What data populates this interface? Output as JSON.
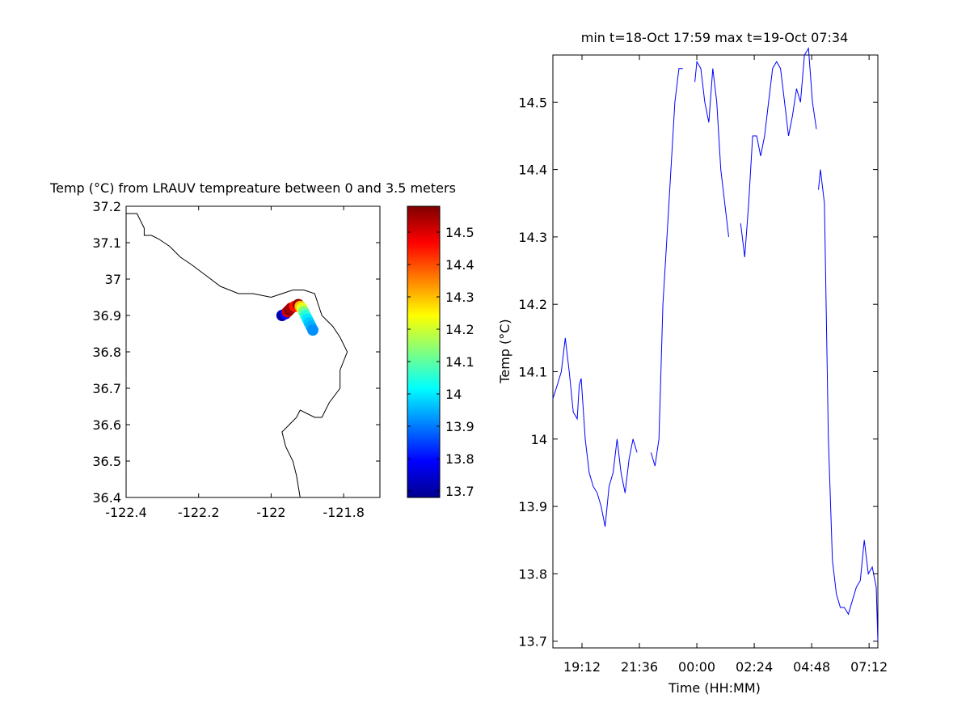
{
  "map_panel": {
    "title": "Temp (°C) from LRAUV tempreature between 0 and 3.5 meters",
    "xlim": [
      -122.4,
      -121.7
    ],
    "ylim": [
      36.4,
      37.2
    ],
    "xticks": [
      "-122.4",
      "-122.2",
      "-122",
      "-121.8"
    ],
    "xtick_values": [
      -122.4,
      -122.2,
      -122.0,
      -121.8
    ],
    "yticks": [
      "37.2",
      "37.1",
      "37",
      "36.9",
      "36.8",
      "36.7",
      "36.6",
      "36.5",
      "36.4"
    ],
    "ytick_values": [
      37.2,
      37.1,
      37.0,
      36.9,
      36.8,
      36.7,
      36.6,
      36.5,
      36.4
    ],
    "coastline": [
      [
        -122.4,
        37.18
      ],
      [
        -122.37,
        37.18
      ],
      [
        -122.36,
        37.16
      ],
      [
        -122.35,
        37.14
      ],
      [
        -122.35,
        37.12
      ],
      [
        -122.33,
        37.12
      ],
      [
        -122.31,
        37.11
      ],
      [
        -122.28,
        37.09
      ],
      [
        -122.25,
        37.06
      ],
      [
        -122.22,
        37.04
      ],
      [
        -122.18,
        37.01
      ],
      [
        -122.14,
        36.98
      ],
      [
        -122.09,
        36.96
      ],
      [
        -122.05,
        36.96
      ],
      [
        -122.0,
        36.95
      ],
      [
        -121.97,
        36.96
      ],
      [
        -121.94,
        36.97
      ],
      [
        -121.91,
        36.97
      ],
      [
        -121.88,
        36.96
      ],
      [
        -121.87,
        36.93
      ],
      [
        -121.86,
        36.9
      ],
      [
        -121.83,
        36.87
      ],
      [
        -121.81,
        36.84
      ],
      [
        -121.79,
        36.8
      ],
      [
        -121.81,
        36.75
      ],
      [
        -121.81,
        36.7
      ],
      [
        -121.84,
        36.66
      ],
      [
        -121.86,
        36.62
      ],
      [
        -121.88,
        36.62
      ],
      [
        -121.9,
        36.63
      ],
      [
        -121.92,
        36.64
      ],
      [
        -121.93,
        36.62
      ],
      [
        -121.95,
        36.6
      ],
      [
        -121.97,
        36.58
      ],
      [
        -121.96,
        36.54
      ],
      [
        -121.94,
        36.5
      ],
      [
        -121.93,
        36.46
      ],
      [
        -121.92,
        36.4
      ]
    ],
    "track": [
      {
        "lon": -121.97,
        "lat": 36.9,
        "temp": 13.72
      },
      {
        "lon": -121.96,
        "lat": 36.905,
        "temp": 13.8
      },
      {
        "lon": -121.955,
        "lat": 36.91,
        "temp": 14.5
      },
      {
        "lon": -121.95,
        "lat": 36.915,
        "temp": 14.57
      },
      {
        "lon": -121.945,
        "lat": 36.92,
        "temp": 14.55
      },
      {
        "lon": -121.935,
        "lat": 36.925,
        "temp": 14.45
      },
      {
        "lon": -121.925,
        "lat": 36.93,
        "temp": 14.56
      },
      {
        "lon": -121.92,
        "lat": 36.925,
        "temp": 14.3
      },
      {
        "lon": -121.915,
        "lat": 36.92,
        "temp": 14.22
      },
      {
        "lon": -121.91,
        "lat": 36.91,
        "temp": 14.12
      },
      {
        "lon": -121.905,
        "lat": 36.9,
        "temp": 14.05
      },
      {
        "lon": -121.9,
        "lat": 36.89,
        "temp": 14.0
      },
      {
        "lon": -121.895,
        "lat": 36.88,
        "temp": 13.97
      },
      {
        "lon": -121.89,
        "lat": 36.87,
        "temp": 13.95
      },
      {
        "lon": -121.885,
        "lat": 36.86,
        "temp": 13.92
      }
    ]
  },
  "colorbar": {
    "range": [
      13.68,
      14.58
    ],
    "ticks": [
      "14.5",
      "14.4",
      "14.3",
      "14.2",
      "14.1",
      "14",
      "13.9",
      "13.8",
      "13.7"
    ],
    "tick_values": [
      14.5,
      14.4,
      14.3,
      14.2,
      14.1,
      14.0,
      13.9,
      13.8,
      13.7
    ],
    "colormap": "jet"
  },
  "chart_data": {
    "type": "line",
    "title": "min t=18-Oct 17:59 max t=19-Oct 07:34",
    "xlabel": "Time (HH:MM)",
    "ylabel": "Temp (°C)",
    "xlim": [
      "17:59",
      "07:34"
    ],
    "ylim": [
      13.69,
      14.57
    ],
    "xticks": [
      "19:12",
      "21:36",
      "00:00",
      "02:24",
      "04:48",
      "07:12"
    ],
    "yticks": [
      "14.5",
      "14.4",
      "14.3",
      "14.2",
      "14.1",
      "14",
      "13.9",
      "13.8",
      "13.7"
    ],
    "line_color": "#0000ff",
    "series": [
      {
        "x": [
          "17:59",
          "18:10",
          "18:20",
          "18:30",
          "18:40",
          "18:50",
          "19:00",
          "19:05",
          "19:10",
          "19:20",
          "19:30",
          "19:40",
          "19:50",
          "20:00",
          "20:10",
          "20:20",
          "20:30",
          "20:40",
          "20:50",
          "21:00",
          "21:10",
          "21:20",
          "21:30"
        ],
        "y": [
          14.06,
          14.08,
          14.1,
          14.15,
          14.1,
          14.04,
          14.03,
          14.08,
          14.09,
          14.0,
          13.95,
          13.93,
          13.92,
          13.9,
          13.87,
          13.93,
          13.95,
          14.0,
          13.95,
          13.92,
          13.97,
          14.0,
          13.98
        ]
      },
      {
        "x": [
          "22:05",
          "22:15",
          "22:25",
          "22:35",
          "22:45",
          "22:55",
          "23:05",
          "23:15",
          "23:25"
        ],
        "y": [
          13.98,
          13.96,
          14.0,
          14.2,
          14.3,
          14.4,
          14.5,
          14.55,
          14.55
        ]
      },
      {
        "x": [
          "23:55",
          "00:00",
          "00:10",
          "00:20",
          "00:30",
          "00:40",
          "00:50",
          "01:00",
          "01:10",
          "01:20"
        ],
        "y": [
          14.53,
          14.56,
          14.55,
          14.5,
          14.47,
          14.55,
          14.5,
          14.4,
          14.35,
          14.3
        ]
      },
      {
        "x": [
          "01:50",
          "02:00",
          "02:10",
          "02:20",
          "02:30",
          "02:40",
          "02:50",
          "03:00",
          "03:10",
          "03:20",
          "03:30",
          "03:40",
          "03:50",
          "04:00",
          "04:10",
          "04:20",
          "04:30",
          "04:40",
          "04:50",
          "05:00"
        ],
        "y": [
          14.32,
          14.27,
          14.35,
          14.45,
          14.45,
          14.42,
          14.45,
          14.5,
          14.55,
          14.56,
          14.55,
          14.5,
          14.45,
          14.48,
          14.52,
          14.5,
          14.57,
          14.58,
          14.5,
          14.46
        ]
      },
      {
        "x": [
          "05:05",
          "05:10",
          "05:20",
          "05:30",
          "05:40",
          "05:50",
          "06:00",
          "06:10",
          "06:20",
          "06:30",
          "06:40",
          "06:50",
          "07:00",
          "07:10",
          "07:20",
          "07:30",
          "07:34"
        ],
        "y": [
          14.37,
          14.4,
          14.35,
          14.0,
          13.82,
          13.77,
          13.75,
          13.75,
          13.74,
          13.76,
          13.78,
          13.79,
          13.85,
          13.8,
          13.81,
          13.78,
          13.7
        ]
      }
    ]
  }
}
